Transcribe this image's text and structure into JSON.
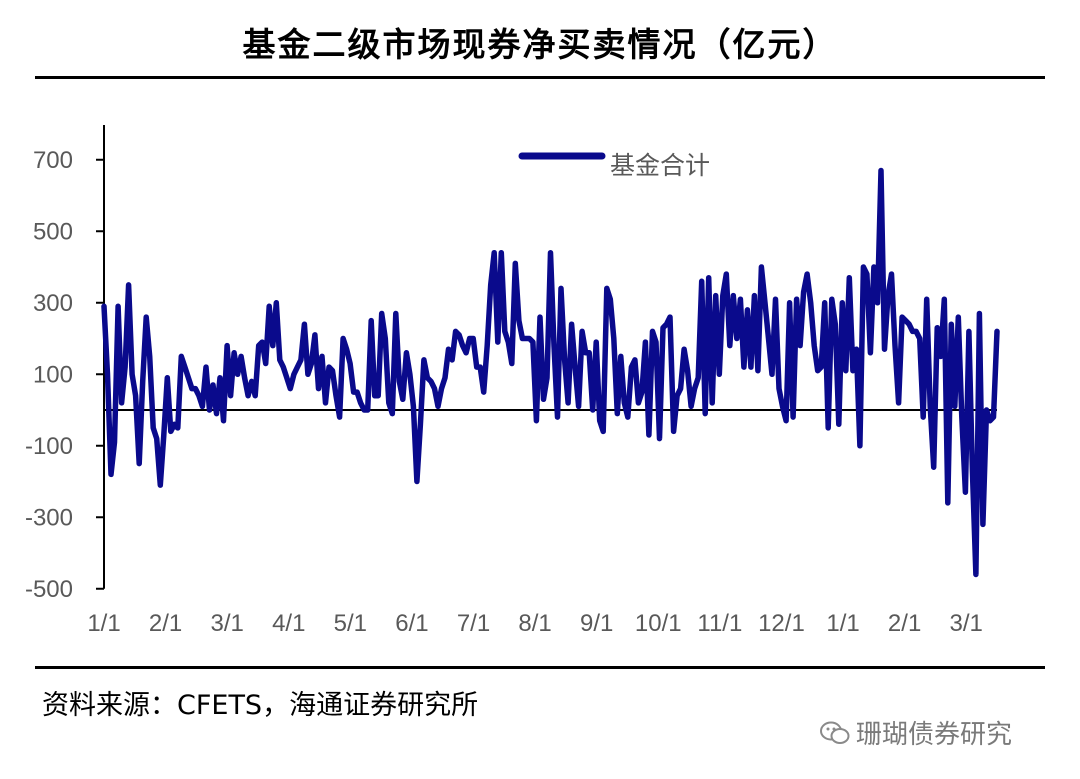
{
  "title": "基金二级市场现券净买卖情况（亿元）",
  "source": "资料来源：CFETS，海通证券研究所",
  "watermark": "珊瑚债券研究",
  "chart_data": {
    "type": "line",
    "title": "基金二级市场现券净买卖情况（亿元）",
    "xlabel": "",
    "ylabel": "",
    "ylim": [
      -500,
      800
    ],
    "yticks": [
      700,
      500,
      300,
      100,
      -100,
      -300,
      -500
    ],
    "x_tick_labels": [
      "1/1",
      "2/1",
      "3/1",
      "4/1",
      "5/1",
      "6/1",
      "7/1",
      "8/1",
      "9/1",
      "10/1",
      "11/1",
      "12/1",
      "1/1",
      "2/1",
      "3/1"
    ],
    "legend": {
      "position": "top-center",
      "entries": [
        "基金合计"
      ]
    },
    "series": [
      {
        "name": "基金合计",
        "color": "#0a0a8c",
        "values": [
          290,
          100,
          -180,
          -90,
          290,
          20,
          120,
          350,
          100,
          40,
          -150,
          80,
          260,
          150,
          -50,
          -80,
          -210,
          -70,
          90,
          -60,
          -40,
          -50,
          150,
          120,
          90,
          60,
          60,
          40,
          10,
          120,
          0,
          70,
          -10,
          90,
          -30,
          180,
          40,
          160,
          100,
          150,
          90,
          40,
          80,
          40,
          180,
          190,
          130,
          290,
          180,
          300,
          140,
          120,
          90,
          60,
          100,
          120,
          140,
          240,
          100,
          130,
          210,
          60,
          150,
          20,
          120,
          110,
          40,
          -20,
          200,
          170,
          130,
          50,
          50,
          20,
          0,
          0,
          250,
          40,
          40,
          270,
          200,
          20,
          -10,
          270,
          80,
          30,
          160,
          100,
          10,
          -200,
          -40,
          140,
          90,
          80,
          60,
          10,
          60,
          90,
          170,
          140,
          220,
          210,
          180,
          160,
          200,
          200,
          120,
          120,
          50,
          180,
          350,
          440,
          190,
          440,
          220,
          190,
          130,
          410,
          250,
          200,
          200,
          200,
          190,
          -30,
          260,
          30,
          90,
          440,
          180,
          -20,
          340,
          140,
          20,
          240,
          120,
          10,
          220,
          160,
          160,
          0,
          190,
          -30,
          -60,
          340,
          310,
          200,
          -10,
          150,
          20,
          -20,
          120,
          140,
          20,
          50,
          190,
          -70,
          220,
          190,
          -80,
          230,
          240,
          260,
          -60,
          40,
          60,
          170,
          110,
          10,
          60,
          90,
          360,
          -10,
          370,
          20,
          320,
          100,
          320,
          380,
          180,
          320,
          200,
          310,
          120,
          280,
          120,
          320,
          110,
          400,
          300,
          200,
          100,
          310,
          60,
          10,
          -30,
          300,
          -20,
          310,
          180,
          330,
          380,
          300,
          180,
          110,
          120,
          300,
          -50,
          310,
          240,
          -40,
          300,
          110,
          370,
          110,
          170,
          -100,
          400,
          380,
          160,
          400,
          300,
          670,
          170,
          320,
          380,
          180,
          20,
          260,
          250,
          240,
          220,
          220,
          200,
          -20,
          310,
          10,
          -160,
          230,
          150,
          310,
          -260,
          240,
          10,
          260,
          -20,
          -230,
          220,
          -170,
          -460,
          270,
          -320,
          0,
          -30,
          -20,
          220
        ]
      }
    ]
  }
}
